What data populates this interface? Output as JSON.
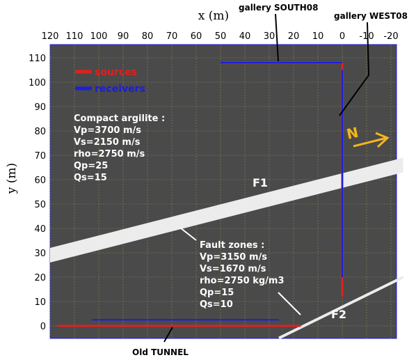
{
  "chart_data": {
    "type": "map",
    "xlabel": "x (m)",
    "ylabel": "y (m)",
    "xlim": [
      120,
      -25
    ],
    "ylim": [
      -5,
      115
    ],
    "x_reversed": true,
    "xticks": [
      120,
      110,
      100,
      90,
      80,
      70,
      60,
      50,
      40,
      30,
      20,
      10,
      0,
      -10,
      -20
    ],
    "yticks": [
      0,
      10,
      20,
      30,
      40,
      50,
      60,
      70,
      80,
      90,
      100,
      110
    ],
    "grid": true,
    "colors": {
      "background": "#4a4a4a",
      "grid": "#8a8a5a",
      "sources": "#e0201c",
      "receivers": "#1c1ce0",
      "fault": "#ececec",
      "north": "#f5b51c"
    },
    "legend": {
      "placement": "top-left",
      "entries": [
        {
          "label": "sources",
          "color": "#e0201c"
        },
        {
          "label": "receivers",
          "color": "#1c1ce0"
        }
      ]
    },
    "series": [
      {
        "name": "sources",
        "segments": [
          {
            "x": [
              49,
              0
            ],
            "y": [
              108,
              108
            ]
          },
          {
            "x": [
              0,
              0
            ],
            "y": [
              108,
              12
            ]
          },
          {
            "x": [
              117,
              17
            ],
            "y": [
              0,
              0
            ]
          }
        ]
      },
      {
        "name": "receivers",
        "segments": [
          {
            "x": [
              50,
              0
            ],
            "y": [
              108,
              108
            ]
          },
          {
            "x": [
              0,
              0
            ],
            "y": [
              105,
              20
            ]
          },
          {
            "x": [
              103,
              26
            ],
            "y": [
              2.5,
              2.5
            ]
          }
        ]
      }
    ],
    "faults": [
      {
        "label": "F1",
        "polygon": [
          [
            120,
            26
          ],
          [
            120,
            32
          ],
          [
            -25,
            69
          ],
          [
            -25,
            63
          ]
        ],
        "label_at": [
          35,
          59
        ]
      },
      {
        "label": "F2",
        "line": [
          [
            26,
            -5
          ],
          [
            -25,
            20
          ]
        ],
        "label_at": [
          -1,
          4
        ]
      }
    ],
    "material_boxes": [
      {
        "lines": [
          "Compact argilite :",
          "Vp=3700 m/s",
          "Vs=2150 m/s",
          "rho=2750 m/s",
          "Qp=25",
          "Qs=15"
        ]
      },
      {
        "lines": [
          "Fault zones :",
          "Vp=3150 m/s",
          "Vs=1670 m/s",
          "rho=2750 kg/m3",
          "Qp=15",
          "Qs=10"
        ]
      }
    ],
    "annotations": [
      {
        "text": "gallery SOUTH08"
      },
      {
        "text": "gallery WEST08"
      },
      {
        "text": "Old TUNNEL"
      },
      {
        "text": "N"
      }
    ]
  }
}
